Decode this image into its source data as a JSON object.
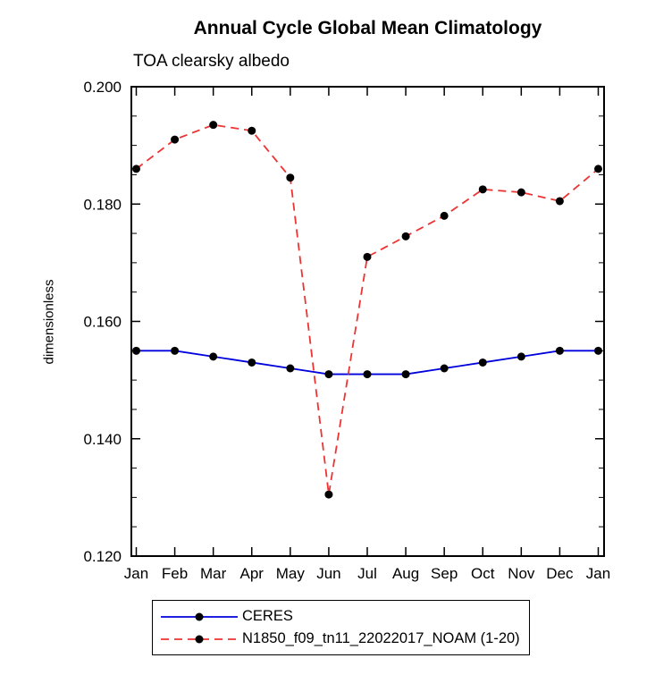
{
  "chart_data": {
    "type": "line",
    "title": "Annual Cycle Global Mean Climatology",
    "subtitle": "TOA clearsky albedo",
    "ylabel": "dimensionless",
    "xlabel": "",
    "categories": [
      "Jan",
      "Feb",
      "Mar",
      "Apr",
      "May",
      "Jun",
      "Jul",
      "Aug",
      "Sep",
      "Oct",
      "Nov",
      "Dec",
      "Jan"
    ],
    "series": [
      {
        "name": "CERES",
        "color": "#0000dd",
        "dash": "none",
        "values": [
          0.155,
          0.155,
          0.154,
          0.153,
          0.152,
          0.151,
          0.151,
          0.151,
          0.152,
          0.153,
          0.154,
          0.155,
          0.155
        ]
      },
      {
        "name": "N1850_f09_tn11_22022017_NOAM (1-20)",
        "color": "#ee3333",
        "dash": "9,6",
        "values": [
          0.186,
          0.191,
          0.1935,
          0.1925,
          0.1845,
          0.1305,
          0.171,
          0.1745,
          0.178,
          0.1825,
          0.182,
          0.1805,
          0.186
        ]
      }
    ],
    "ylim": [
      0.12,
      0.2
    ],
    "yticks": [
      0.12,
      0.14,
      0.16,
      0.18,
      0.2
    ],
    "ytick_labels": [
      "0.120",
      "0.140",
      "0.160",
      "0.180",
      "0.200"
    ],
    "y_minor_step": 0.005,
    "marker_color": "#000000",
    "axis_color": "#000000",
    "grid": false,
    "legend_position": "bottom"
  }
}
